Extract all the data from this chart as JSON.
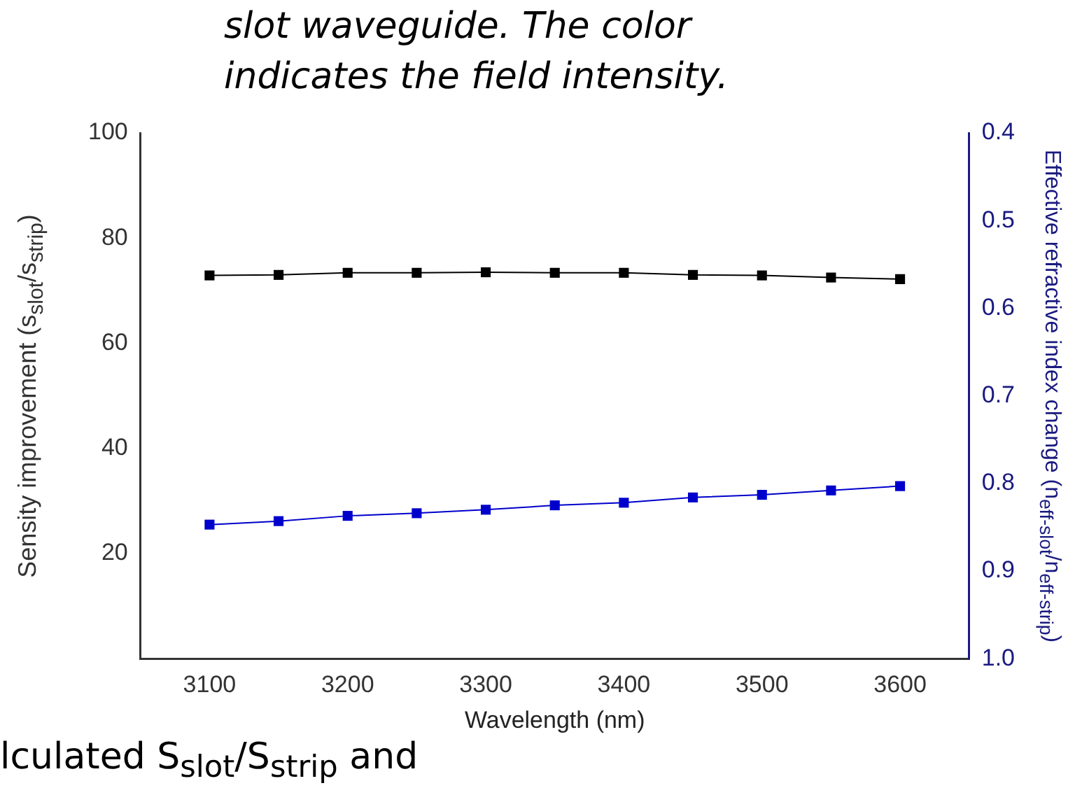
{
  "chart_data": {
    "type": "line",
    "xlabel": "Wavelength (nm)",
    "ylabel": "Sensity improvement (s$_{slot}$/s$_{strip}$)",
    "y2label": "Effective refractive index change (n$_{eff-slot}$/n$_{eff-strip}$)",
    "annotations": [
      "slot waveguide.  The  color",
      "indicates the field intensity.",
      "lculated S$_{slot}$/S$_{strip}$ and"
    ],
    "x": [
      3100,
      3150,
      3200,
      3250,
      3300,
      3350,
      3400,
      3450,
      3500,
      3550,
      3600
    ],
    "series": [
      {
        "color": "#000000",
        "values": [
          72.9,
          73.0,
          73.4,
          73.4,
          73.5,
          73.4,
          73.4,
          73.0,
          72.9,
          72.5,
          72.2
        ]
      },
      {
        "color": "#0000cc",
        "axis": "y2",
        "values": [
          0.847,
          0.843,
          0.837,
          0.834,
          0.83,
          0.825,
          0.822,
          0.816,
          0.813,
          0.808,
          0.803
        ]
      }
    ],
    "xlim": [
      3050,
      3650
    ],
    "xticks": [
      3100,
      3200,
      3300,
      3400,
      3500,
      3600
    ],
    "ylim": [
      0,
      100
    ],
    "yticks": [
      20,
      40,
      60,
      80,
      100
    ],
    "y2lim": [
      1.0,
      0.4
    ],
    "y2ticks": [
      {
        "value": 0.4,
        "label": "0.4"
      },
      {
        "value": 0.5,
        "label": "0.5"
      },
      {
        "value": 0.6,
        "label": "0.6"
      },
      {
        "value": 0.7,
        "label": "0.7"
      },
      {
        "value": 0.8,
        "label": "0.8"
      },
      {
        "value": 0.9,
        "label": "0.9"
      },
      {
        "value": 1.0,
        "label": "1.0"
      }
    ],
    "grid": false,
    "legend": false,
    "marker": "square",
    "line_style": "solid"
  }
}
